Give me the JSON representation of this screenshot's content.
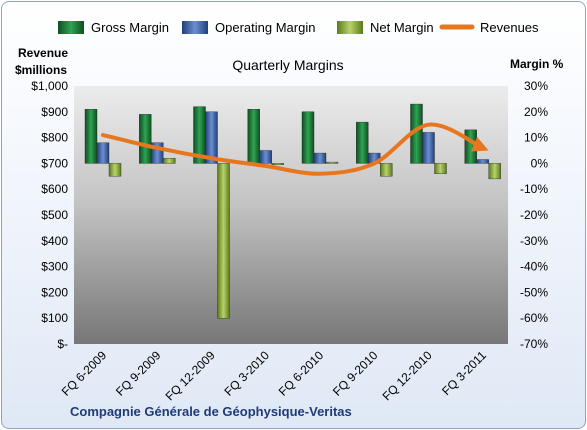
{
  "chart_data": {
    "type": "bar",
    "title": "Quarterly Margins",
    "company": "Compagnie Générale de Géophysique-Veritas",
    "left_axis": {
      "label_line1": "Revenue",
      "label_line2": "$millions",
      "ylim": [
        0,
        1000
      ],
      "ticks": [
        0,
        100,
        200,
        300,
        400,
        500,
        600,
        700,
        800,
        900,
        1000
      ],
      "tick_labels": [
        "$-",
        "$100",
        "$200",
        "$300",
        "$400",
        "$500",
        "$600",
        "$700",
        "$800",
        "$900",
        "$1,000"
      ]
    },
    "right_axis": {
      "label": "Margin %",
      "ylim": [
        -70,
        30
      ],
      "ticks": [
        -70,
        -60,
        -50,
        -40,
        -30,
        -20,
        -10,
        0,
        10,
        20,
        30
      ],
      "tick_labels": [
        "-70%",
        "-60%",
        "-50%",
        "-40%",
        "-30%",
        "-20%",
        "-10%",
        "0%",
        "10%",
        "20%",
        "30%"
      ]
    },
    "categories": [
      "FQ 6-2009",
      "FQ 9-2009",
      "FQ 12-2009",
      "FQ 3-2010",
      "FQ 6-2010",
      "FQ 9-2010",
      "FQ 12-2010",
      "FQ 3-2011"
    ],
    "series": [
      {
        "name": "Gross Margin",
        "kind": "bar",
        "axis": "right",
        "color": "#1f7a3a",
        "values": [
          21,
          19,
          22,
          21,
          20,
          16,
          23,
          13
        ]
      },
      {
        "name": "Operating Margin",
        "kind": "bar",
        "axis": "right",
        "color": "#3e63a8",
        "values": [
          8,
          8,
          20,
          5,
          4,
          4,
          12,
          1.5
        ]
      },
      {
        "name": "Net Margin",
        "kind": "bar",
        "axis": "right",
        "color": "#8aab3a",
        "values": [
          -5,
          2,
          -60,
          -0.5,
          0.5,
          -5,
          -4,
          -6
        ]
      },
      {
        "name": "Revenues",
        "kind": "line",
        "axis": "left",
        "color": "#e8761f",
        "values": [
          810,
          760,
          720,
          690,
          660,
          700,
          850,
          760
        ]
      }
    ],
    "legend_position": "top",
    "grid": false
  }
}
